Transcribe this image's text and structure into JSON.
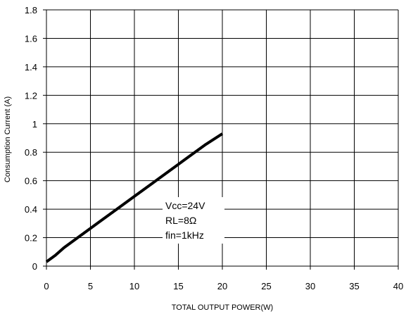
{
  "chart_data": {
    "type": "line",
    "title": "",
    "xlabel": "TOTAL OUTPUT POWER(W)",
    "ylabel": "Consumption Current (A)",
    "xlim": [
      0,
      40
    ],
    "ylim": [
      0,
      1.8
    ],
    "xticks": [
      0,
      5,
      10,
      15,
      20,
      25,
      30,
      35,
      40
    ],
    "yticks": [
      "0",
      "0.2",
      "0.4",
      "0.6",
      "0.8",
      "1",
      "1.2",
      "1.4",
      "1.6",
      "1.8"
    ],
    "grid": true,
    "series": [
      {
        "x": [
          0,
          1,
          2,
          4,
          6,
          8,
          10,
          12,
          14,
          16,
          18,
          20
        ],
        "y": [
          0.03,
          0.075,
          0.13,
          0.22,
          0.31,
          0.4,
          0.49,
          0.58,
          0.67,
          0.76,
          0.85,
          0.93
        ]
      }
    ],
    "annotations": [
      "Vcc=24V",
      "RL=8Ω",
      "fin=1kHz"
    ],
    "line_color": "#000000",
    "grid_color": "#000000"
  }
}
